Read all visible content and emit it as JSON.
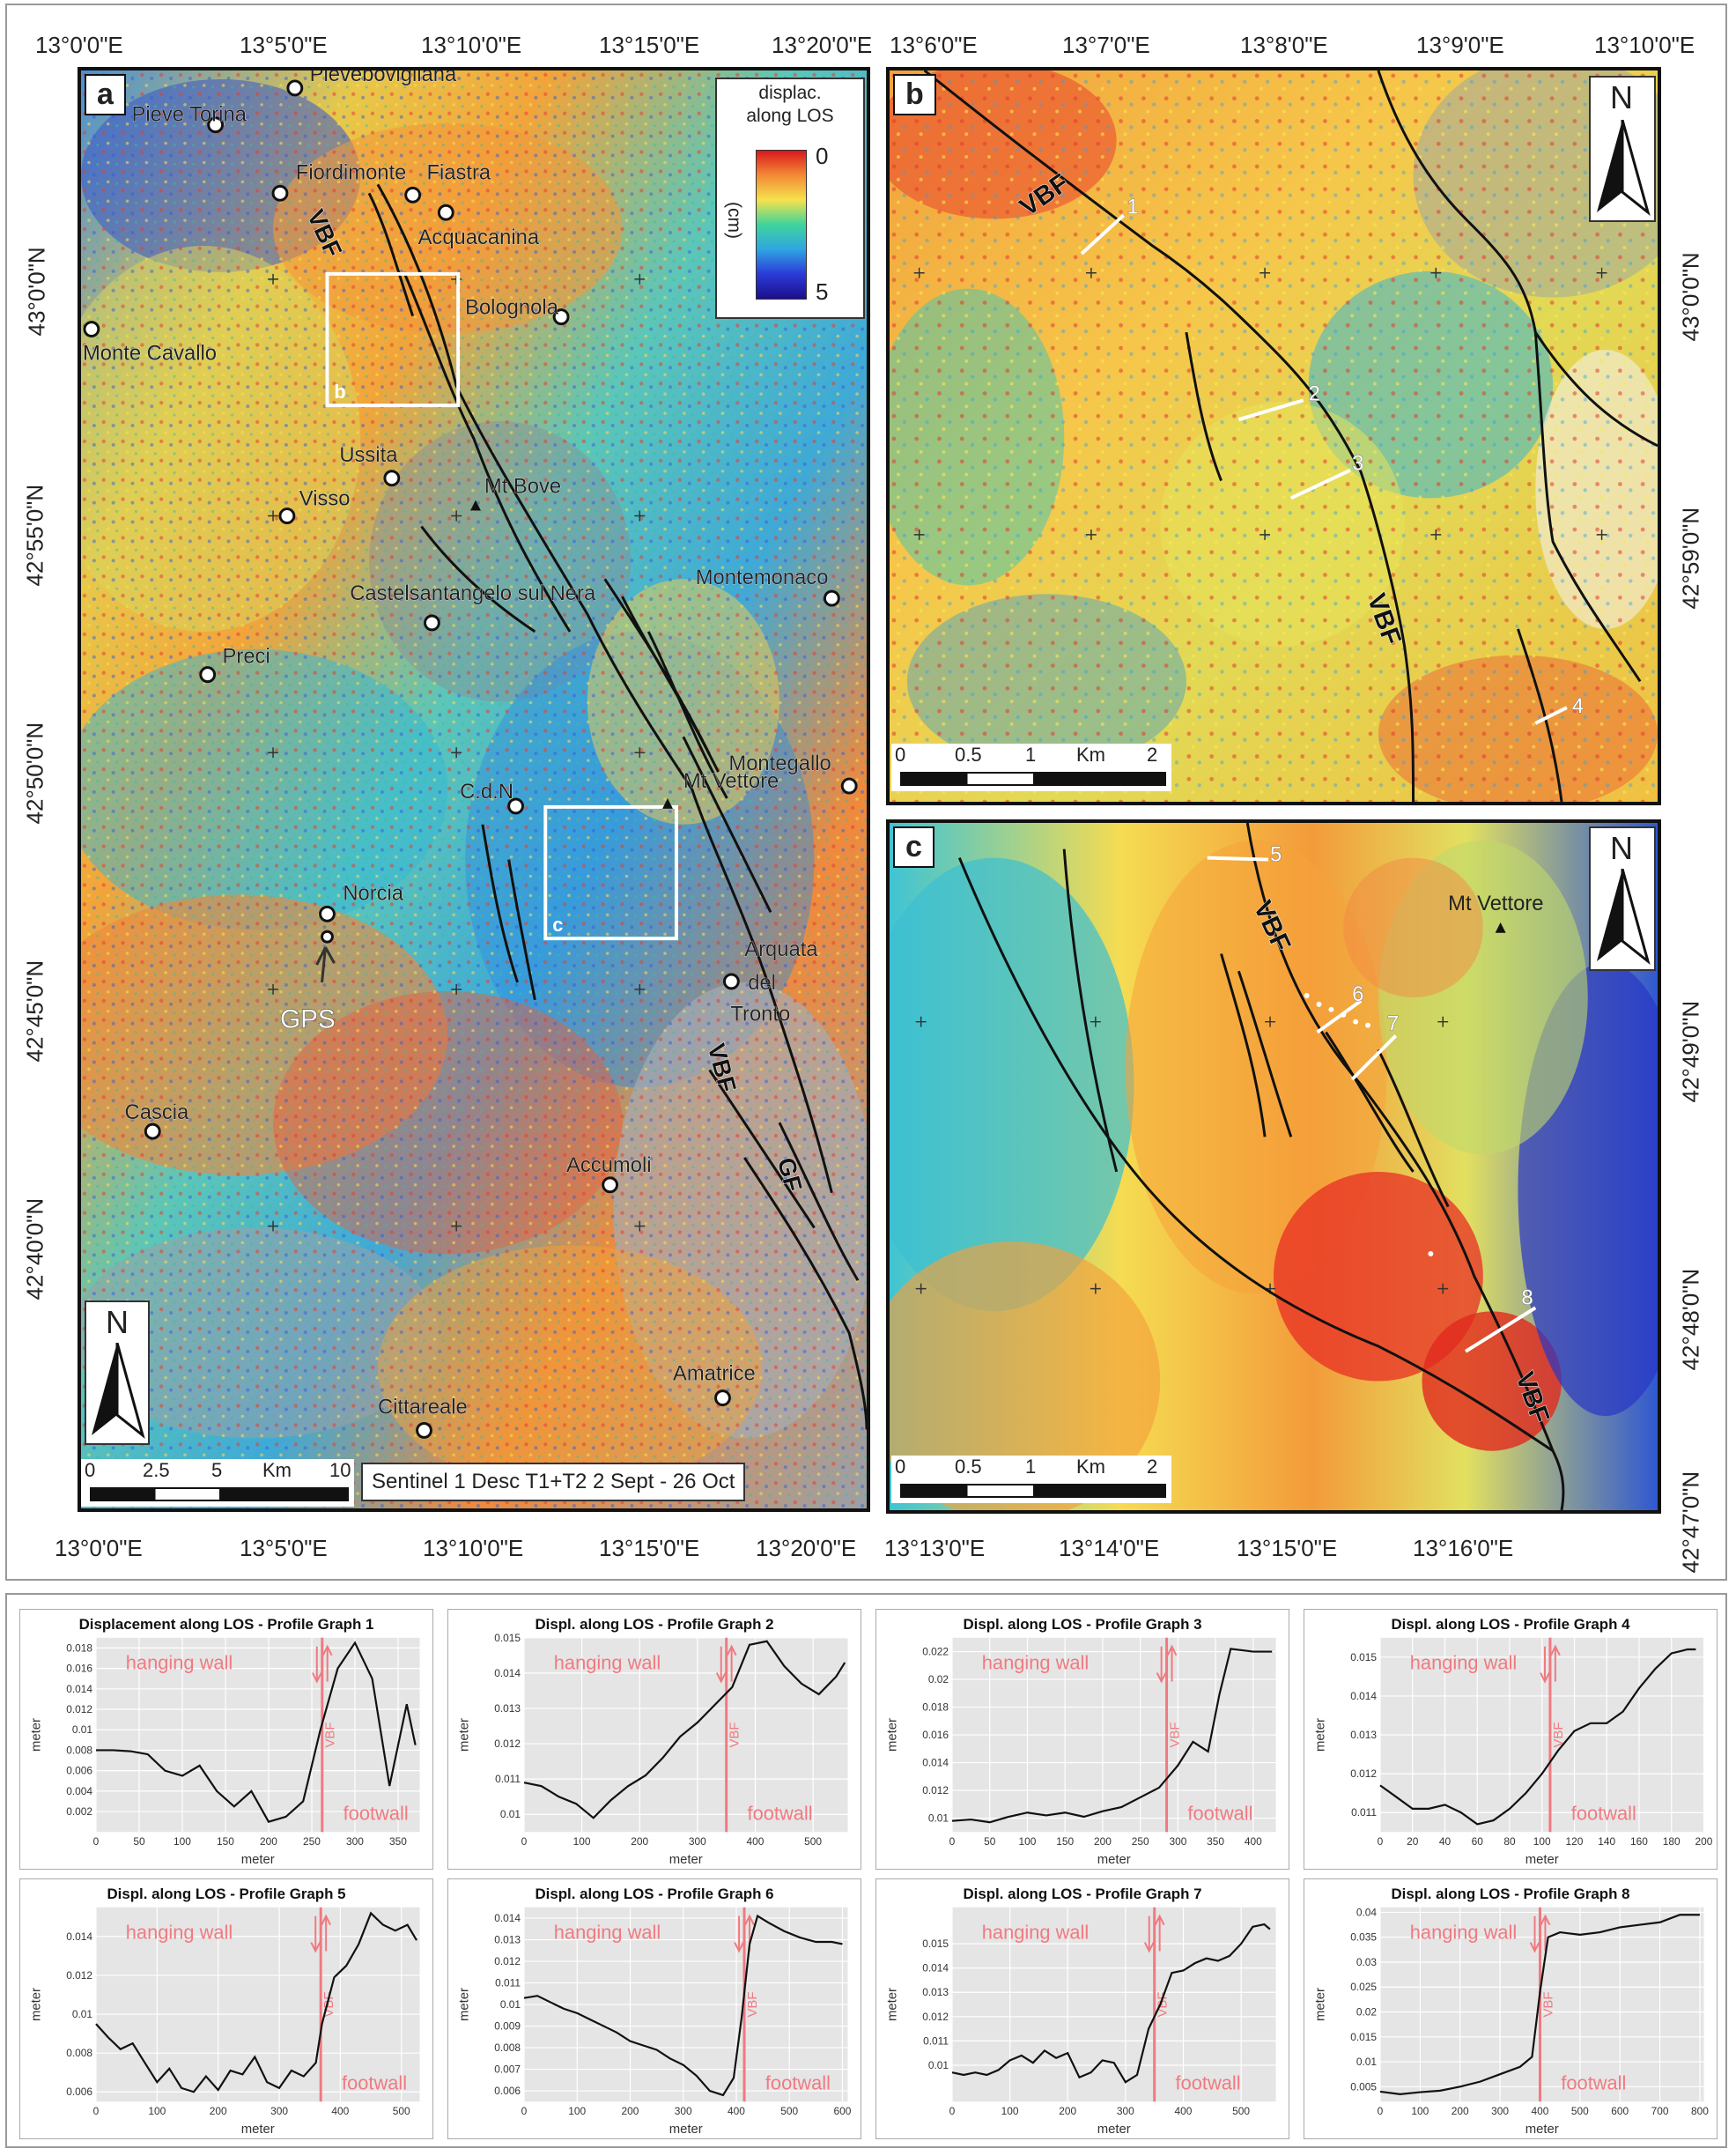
{
  "panel_a": {
    "letter": "a",
    "top_lon": [
      "13°0'0\"E",
      "13°5'0\"E",
      "13°10'0\"E",
      "13°15'0\"E",
      "13°20'0\"E"
    ],
    "bottom_lon": [
      "13°0'0\"E",
      "13°5'0\"E",
      "13°10'0\"E",
      "13°15'0\"E",
      "13°20'0\"E"
    ],
    "left_lat": [
      "43°0'0\"N",
      "42°55'0\"N",
      "42°50'0\"N",
      "42°45'0\"N",
      "42°40'0\"N"
    ],
    "towns": [
      "Pievebovigliana",
      "Pieve Torina",
      "Fiordimonte",
      "Fiastra",
      "Acquacanina",
      "Bolognola",
      "Monte Cavallo",
      "Ussita",
      "Visso",
      "Castelsantangelo sul Nera",
      "Montemonaco",
      "Preci",
      "Montegallo",
      "C.d.N",
      "Norcia",
      "Arquata del Tronto",
      "Cascia",
      "Accumoli",
      "Amatrice",
      "Cittareale"
    ],
    "arquata_lines": [
      "Arquata",
      "del",
      "Tronto"
    ],
    "peaks": [
      "Mt Bove",
      "Mt Vettore"
    ],
    "gps_label": "GPS",
    "fault_labels": [
      "VBF",
      "VBF",
      "GF"
    ],
    "inset_letters": [
      "b",
      "c"
    ],
    "legend": {
      "title_line1": "displac.",
      "title_line2": "along LOS",
      "max": "0",
      "min": "5",
      "unit": "(cm)"
    },
    "north": "N",
    "scale": {
      "ticks": [
        "0",
        "2.5",
        "5",
        "Km",
        "10"
      ]
    },
    "credit": "Sentinel 1 Desc T1+T2 2 Sept - 26 Oct"
  },
  "panel_b": {
    "letter": "b",
    "top_lon": [
      "13°6'0\"E",
      "13°7'0\"E",
      "13°8'0\"E",
      "13°9'0\"E",
      "13°10'0\"E"
    ],
    "right_lat": [
      "43°0'0\"N",
      "42°59'0\"N"
    ],
    "fault_labels": [
      "VBF",
      "VBF"
    ],
    "profiles": [
      "1",
      "2",
      "3",
      "4"
    ],
    "north": "N",
    "scale": {
      "ticks": [
        "0",
        "0.5",
        "1",
        "Km",
        "2"
      ]
    }
  },
  "panel_c": {
    "letter": "c",
    "bottom_lon": [
      "13°13'0\"E",
      "13°14'0\"E",
      "13°15'0\"E",
      "13°16'0\"E"
    ],
    "right_lat": [
      "42°49'0\"N",
      "42°48'0\"N",
      "42°47'0\"N"
    ],
    "fault_labels": [
      "VBF",
      "VBF"
    ],
    "profiles": [
      "5",
      "6",
      "7",
      "8"
    ],
    "peak": "Mt Vettore",
    "north": "N",
    "scale": {
      "ticks": [
        "0",
        "0.5",
        "1",
        "Km",
        "2"
      ]
    }
  },
  "chart_data": [
    {
      "type": "line",
      "title": "Displacement along LOS - Profile Graph 1",
      "xlabel": "meter",
      "ylabel": "meter",
      "xlim": [
        0,
        375
      ],
      "ylim": [
        0,
        0.019
      ],
      "xticks": [
        0,
        50,
        100,
        150,
        200,
        250,
        300,
        350
      ],
      "yticks": [
        0.002,
        0.004,
        0.006,
        0.008,
        0.01,
        0.012,
        0.014,
        0.016,
        0.018
      ],
      "x": [
        0,
        20,
        40,
        60,
        80,
        100,
        120,
        140,
        160,
        180,
        200,
        220,
        240,
        260,
        280,
        300,
        320,
        340,
        360,
        370
      ],
      "y": [
        0.008,
        0.008,
        0.0079,
        0.0076,
        0.006,
        0.0055,
        0.0065,
        0.004,
        0.0025,
        0.004,
        0.001,
        0.0015,
        0.003,
        0.01,
        0.016,
        0.0185,
        0.015,
        0.0045,
        0.0125,
        0.0085
      ],
      "fault_x": 262,
      "fault_label": "VBF",
      "hanging": "hanging wall",
      "foot": "footwall"
    },
    {
      "type": "line",
      "title": "Displ. along LOS - Profile Graph 2",
      "xlabel": "meter",
      "ylabel": "meter",
      "xlim": [
        0,
        560
      ],
      "ylim": [
        0.0095,
        0.015
      ],
      "xticks": [
        0,
        100,
        200,
        300,
        400,
        500
      ],
      "yticks": [
        0.01,
        0.011,
        0.012,
        0.013,
        0.014,
        0.015
      ],
      "x": [
        0,
        30,
        60,
        90,
        120,
        150,
        180,
        210,
        240,
        270,
        300,
        330,
        360,
        390,
        420,
        450,
        480,
        510,
        540,
        555
      ],
      "y": [
        0.0109,
        0.0108,
        0.0105,
        0.0103,
        0.0099,
        0.0104,
        0.0108,
        0.0111,
        0.0116,
        0.0122,
        0.0126,
        0.0131,
        0.0136,
        0.0148,
        0.0149,
        0.0142,
        0.0137,
        0.0134,
        0.0139,
        0.0143
      ],
      "fault_x": 350,
      "fault_label": "VBF",
      "hanging": "hanging wall",
      "foot": "footwall"
    },
    {
      "type": "line",
      "title": "Displ. along LOS - Profile Graph 3",
      "xlabel": "meter",
      "ylabel": "meter",
      "xlim": [
        0,
        430
      ],
      "ylim": [
        0.009,
        0.023
      ],
      "xticks": [
        0,
        50,
        100,
        150,
        200,
        250,
        300,
        350,
        400
      ],
      "yticks": [
        0.01,
        0.012,
        0.014,
        0.016,
        0.018,
        0.02,
        0.022
      ],
      "x": [
        0,
        25,
        50,
        75,
        100,
        125,
        150,
        175,
        200,
        225,
        250,
        275,
        300,
        320,
        340,
        355,
        370,
        400,
        425
      ],
      "y": [
        0.0098,
        0.0099,
        0.0097,
        0.0101,
        0.0104,
        0.0102,
        0.0104,
        0.0101,
        0.0105,
        0.0108,
        0.0115,
        0.0122,
        0.0138,
        0.0155,
        0.0148,
        0.0189,
        0.0222,
        0.022,
        0.022
      ],
      "fault_x": 285,
      "fault_label": "VBF",
      "hanging": "hanging wall",
      "foot": "footwall"
    },
    {
      "type": "line",
      "title": "Displ. along LOS - Profile Graph 4",
      "xlabel": "meter",
      "ylabel": "meter",
      "xlim": [
        0,
        200
      ],
      "ylim": [
        0.0105,
        0.0155
      ],
      "xticks": [
        0,
        20,
        40,
        60,
        80,
        100,
        120,
        140,
        160,
        180,
        200
      ],
      "yticks": [
        0.011,
        0.012,
        0.013,
        0.014,
        0.015
      ],
      "x": [
        0,
        10,
        20,
        30,
        40,
        50,
        60,
        70,
        80,
        90,
        100,
        110,
        120,
        130,
        140,
        150,
        160,
        170,
        180,
        190,
        195
      ],
      "y": [
        0.0117,
        0.0114,
        0.0111,
        0.0111,
        0.0112,
        0.011,
        0.0107,
        0.0108,
        0.0111,
        0.0115,
        0.012,
        0.0126,
        0.0131,
        0.0133,
        0.0133,
        0.0136,
        0.0142,
        0.0147,
        0.0151,
        0.0152,
        0.0152
      ],
      "fault_x": 105,
      "fault_label": "VBF",
      "hanging": "hanging wall",
      "foot": "footwall"
    },
    {
      "type": "line",
      "title": "Displ. along LOS - Profile Graph 5",
      "xlabel": "meter",
      "ylabel": "meter",
      "xlim": [
        0,
        530
      ],
      "ylim": [
        0.0055,
        0.0155
      ],
      "xticks": [
        0,
        100,
        200,
        300,
        400,
        500
      ],
      "yticks": [
        0.006,
        0.008,
        0.01,
        0.012,
        0.014
      ],
      "x": [
        0,
        20,
        40,
        60,
        80,
        100,
        120,
        140,
        160,
        180,
        200,
        220,
        240,
        260,
        280,
        300,
        320,
        340,
        360,
        370,
        390,
        410,
        430,
        450,
        470,
        490,
        510,
        525
      ],
      "y": [
        0.0095,
        0.0088,
        0.0082,
        0.0085,
        0.0075,
        0.0065,
        0.0072,
        0.0062,
        0.006,
        0.0068,
        0.0061,
        0.0071,
        0.0069,
        0.0078,
        0.0065,
        0.0062,
        0.0071,
        0.0068,
        0.0075,
        0.0095,
        0.0119,
        0.0125,
        0.0136,
        0.0152,
        0.0146,
        0.0143,
        0.0146,
        0.0138
      ],
      "fault_x": 368,
      "fault_label": "VBF",
      "hanging": "hanging wall",
      "foot": "footwall"
    },
    {
      "type": "line",
      "title": "Displ. along LOS - Profile Graph 6",
      "xlabel": "meter",
      "ylabel": "meter",
      "xlim": [
        0,
        610
      ],
      "ylim": [
        0.0055,
        0.0145
      ],
      "xticks": [
        0,
        100,
        200,
        300,
        400,
        500,
        600
      ],
      "yticks": [
        0.006,
        0.007,
        0.008,
        0.009,
        0.01,
        0.011,
        0.012,
        0.013,
        0.014
      ],
      "x": [
        0,
        25,
        50,
        75,
        100,
        125,
        150,
        175,
        200,
        225,
        250,
        275,
        300,
        325,
        350,
        375,
        395,
        410,
        425,
        440,
        460,
        490,
        520,
        550,
        580,
        600
      ],
      "y": [
        0.0103,
        0.0104,
        0.0101,
        0.0098,
        0.0096,
        0.0093,
        0.009,
        0.0087,
        0.0083,
        0.0081,
        0.0079,
        0.0075,
        0.0072,
        0.0067,
        0.006,
        0.0058,
        0.0066,
        0.0094,
        0.0128,
        0.0141,
        0.0138,
        0.0134,
        0.0131,
        0.0129,
        0.0129,
        0.0128
      ],
      "fault_x": 415,
      "fault_label": "VBF",
      "hanging": "hanging wall",
      "foot": "footwall"
    },
    {
      "type": "line",
      "title": "Displ. along LOS - Profile Graph 7",
      "xlabel": "meter",
      "ylabel": "meter",
      "xlim": [
        0,
        560
      ],
      "ylim": [
        0.0085,
        0.0165
      ],
      "xticks": [
        0,
        100,
        200,
        300,
        400,
        500
      ],
      "yticks": [
        0.01,
        0.011,
        0.012,
        0.013,
        0.014,
        0.015
      ],
      "x": [
        0,
        20,
        40,
        60,
        80,
        100,
        120,
        140,
        160,
        180,
        200,
        220,
        240,
        260,
        280,
        300,
        320,
        340,
        360,
        380,
        400,
        420,
        440,
        460,
        480,
        500,
        520,
        540,
        550
      ],
      "y": [
        0.0097,
        0.0096,
        0.0097,
        0.0096,
        0.0098,
        0.0102,
        0.0104,
        0.0101,
        0.0106,
        0.0103,
        0.0105,
        0.0095,
        0.0097,
        0.0102,
        0.0101,
        0.0093,
        0.0096,
        0.0115,
        0.0125,
        0.0138,
        0.0139,
        0.0142,
        0.0144,
        0.0143,
        0.0145,
        0.015,
        0.0157,
        0.0158,
        0.0156
      ],
      "fault_x": 350,
      "fault_label": "VBF",
      "hanging": "hanging wall",
      "foot": "footwall"
    },
    {
      "type": "line",
      "title": "Displ. along LOS - Profile Graph 8",
      "xlabel": "meter",
      "ylabel": "meter",
      "xlim": [
        0,
        810
      ],
      "ylim": [
        0.002,
        0.041
      ],
      "xticks": [
        0,
        100,
        200,
        300,
        400,
        500,
        600,
        700,
        800
      ],
      "yticks": [
        0.005,
        0.01,
        0.015,
        0.02,
        0.025,
        0.03,
        0.035,
        0.04
      ],
      "x": [
        0,
        50,
        100,
        150,
        200,
        250,
        300,
        350,
        380,
        400,
        420,
        450,
        500,
        550,
        600,
        650,
        700,
        750,
        800
      ],
      "y": [
        0.004,
        0.0035,
        0.0039,
        0.0042,
        0.005,
        0.006,
        0.0075,
        0.009,
        0.011,
        0.024,
        0.035,
        0.036,
        0.0355,
        0.036,
        0.037,
        0.0375,
        0.038,
        0.0395,
        0.0395
      ],
      "fault_x": 400,
      "fault_label": "VBF",
      "hanging": "hanging wall",
      "foot": "footwall"
    }
  ]
}
